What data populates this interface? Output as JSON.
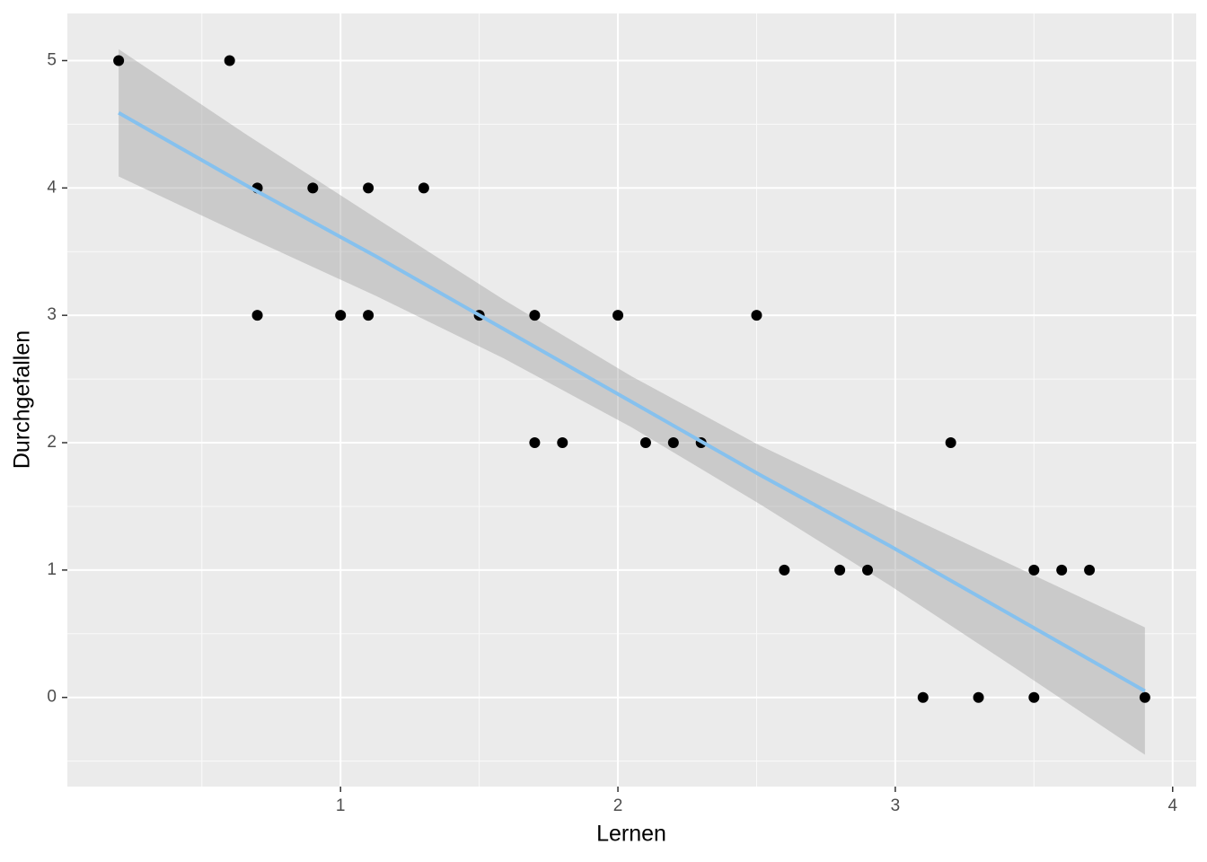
{
  "chart_data": {
    "type": "scatter",
    "x_label": "Lernen",
    "y_label": "Durchgefallen",
    "x": [
      0.2,
      0.6,
      0.7,
      0.9,
      1.1,
      1.3,
      0.7,
      1.0,
      1.1,
      1.5,
      1.7,
      2.0,
      2.5,
      1.7,
      1.8,
      2.1,
      2.2,
      2.3,
      3.2,
      2.6,
      2.8,
      2.9,
      3.5,
      3.6,
      3.7,
      3.1,
      3.3,
      3.5,
      3.9
    ],
    "y": [
      5,
      5,
      4,
      4,
      4,
      4,
      3,
      3,
      3,
      3,
      3,
      3,
      3,
      2,
      2,
      2,
      2,
      2,
      2,
      1,
      1,
      1,
      1,
      1,
      1,
      0,
      0,
      0,
      0
    ],
    "color": "#000000",
    "fit": {
      "x": [
        0.2,
        0.66,
        1.13,
        1.59,
        2.05,
        2.51,
        2.98,
        3.44,
        3.9
      ],
      "y": [
        4.59,
        4.02,
        3.46,
        2.89,
        2.32,
        1.75,
        1.19,
        0.62,
        0.05
      ],
      "upper": [
        5.09,
        4.42,
        3.76,
        3.12,
        2.52,
        1.98,
        1.49,
        1.02,
        0.55
      ],
      "lower": [
        4.09,
        3.62,
        3.15,
        2.66,
        2.12,
        1.52,
        0.88,
        0.22,
        -0.45
      ],
      "color": "#86c1ee",
      "band_color": "#999999"
    },
    "xlim": [
      0.015,
      4.085
    ],
    "ylim": [
      -0.7,
      5.37
    ],
    "xticks": [
      1,
      2,
      3,
      4
    ],
    "yticks": [
      0,
      1,
      2,
      3,
      4,
      5
    ],
    "x_minor_grid": [
      0.5,
      1.5,
      2.5,
      3.5
    ],
    "y_minor_grid": [
      -0.5,
      0.5,
      1.5,
      2.5,
      3.5,
      4.5
    ],
    "grid": true
  }
}
